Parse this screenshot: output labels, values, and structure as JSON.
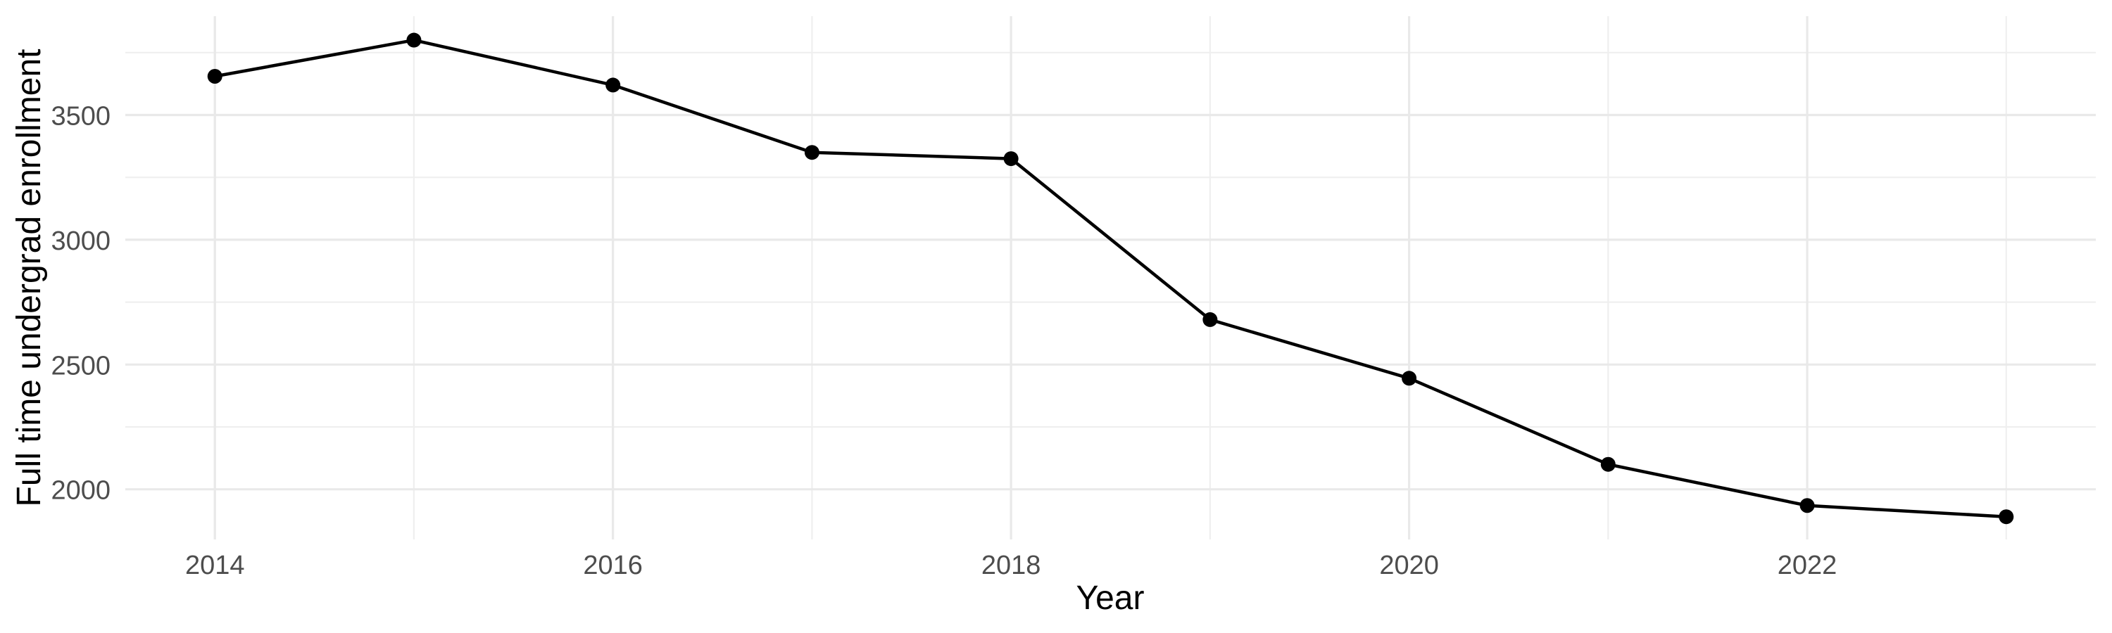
{
  "chart_data": {
    "type": "line",
    "title": "",
    "xlabel": "Year",
    "ylabel": "Full time undergrad enrollment",
    "x": [
      2014,
      2015,
      2016,
      2017,
      2018,
      2019,
      2020,
      2021,
      2022,
      2023
    ],
    "series": [
      {
        "name": "Full time undergrad enrollment",
        "values": [
          3655,
          3800,
          3620,
          3350,
          3325,
          2680,
          2445,
          2100,
          1935,
          1890
        ]
      }
    ],
    "x_major_ticks": [
      2014,
      2016,
      2018,
      2020,
      2022
    ],
    "x_minor_ticks": [
      2015,
      2017,
      2019,
      2021,
      2023
    ],
    "x_tick_labels": [
      "2014",
      "2016",
      "2018",
      "2020",
      "2022"
    ],
    "y_major_ticks": [
      2000,
      2500,
      3000,
      3500
    ],
    "y_minor_ticks": [
      2250,
      2750,
      3250,
      3750
    ],
    "y_tick_labels": [
      "2000",
      "2500",
      "3000",
      "3500"
    ],
    "xlim": [
      2013.55,
      2023.45
    ],
    "ylim": [
      1799,
      3896
    ],
    "grid": "on",
    "legend": "none",
    "colors": {
      "line": "#000000",
      "point": "#000000",
      "grid_major": "#e9e9e9",
      "grid_minor": "#efefef",
      "tick_text": "#4d4d4d",
      "axis_title": "#000000",
      "background": "#ffffff"
    }
  }
}
